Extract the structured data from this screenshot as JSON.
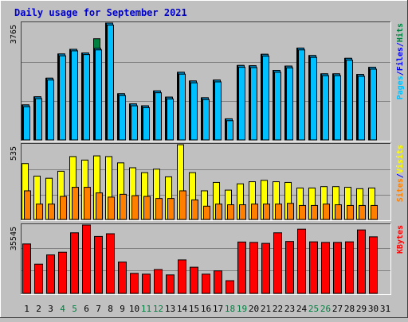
{
  "chart_data": {
    "type": "bar",
    "title": "Daily usage for September 2021",
    "colors": {
      "background": "#c0c0c0",
      "title": "#0000cc",
      "hits": "#008040",
      "files": "#00c0ff",
      "pages": "#00c0ff",
      "visits": "#ffff00",
      "sites": "#ff8000",
      "kbytes": "#ff0000",
      "weekday_label": "#000000",
      "weekend_label": "#008040"
    },
    "categories": [
      "1",
      "2",
      "3",
      "4",
      "5",
      "6",
      "7",
      "8",
      "9",
      "10",
      "11",
      "12",
      "13",
      "14",
      "15",
      "16",
      "17",
      "18",
      "19",
      "20",
      "21",
      "22",
      "23",
      "24",
      "25",
      "26",
      "27",
      "28",
      "29",
      "30",
      "31"
    ],
    "weekend_days": [
      "4",
      "5",
      "11",
      "12",
      "18",
      "19",
      "25",
      "26"
    ],
    "panels": [
      {
        "name": "hits-files-pages",
        "max_label": "3765",
        "ylim": [
          0,
          3765
        ],
        "legend": [
          "Pages",
          "/",
          "Files",
          "/",
          "Hits"
        ],
        "series": [
          {
            "name": "Hits",
            "values": [
              1130,
              1390,
              1990,
              2770,
              2920,
              2800,
              3260,
              3765,
              1490,
              1160,
              1100,
              1580,
              1380,
              2180,
              1900,
              1360,
              1930,
              680,
              2400,
              2390,
              2760,
              2240,
              2380,
              2960,
              2720,
              2130,
              2130,
              2630,
              2110,
              2340,
              0
            ]
          },
          {
            "name": "Files",
            "values": [
              1130,
              1390,
              1990,
              2770,
              2920,
              2800,
              2950,
              3765,
              1490,
              1160,
              1100,
              1580,
              1380,
              2180,
              1900,
              1360,
              1930,
              680,
              2400,
              2390,
              2760,
              2240,
              2380,
              2960,
              2720,
              2130,
              2130,
              2630,
              2110,
              2340,
              0
            ]
          },
          {
            "name": "Pages",
            "values": [
              1070,
              1330,
              1930,
              2710,
              2870,
              2750,
              2900,
              3700,
              1430,
              1100,
              1040,
              1520,
              1320,
              2120,
              1840,
              1300,
              1870,
              620,
              2340,
              2330,
              2700,
              2180,
              2320,
              2900,
              2660,
              2070,
              2070,
              2570,
              2050,
              2280,
              0
            ]
          }
        ]
      },
      {
        "name": "visits-sites",
        "max_label": "535",
        "ylim": [
          0,
          535
        ],
        "legend": [
          "Sites",
          "/",
          "Visits"
        ],
        "series": [
          {
            "name": "Visits",
            "values": [
              400,
              310,
              295,
              345,
              450,
              425,
              455,
              450,
              405,
              370,
              335,
              360,
              305,
              535,
              335,
              205,
              265,
              210,
              255,
              270,
              280,
              270,
              265,
              225,
              225,
              235,
              235,
              230,
              220,
              225,
              0
            ]
          },
          {
            "name": "Sites",
            "values": [
              205,
              110,
              110,
              165,
              230,
              230,
              190,
              160,
              180,
              170,
              165,
              150,
              150,
              205,
              140,
              95,
              110,
              105,
              105,
              110,
              110,
              110,
              115,
              100,
              100,
              110,
              105,
              100,
              100,
              100,
              0
            ]
          }
        ]
      },
      {
        "name": "kbytes",
        "max_label": "35545",
        "ylim": [
          0,
          35545
        ],
        "legend": [
          "KBytes"
        ],
        "series": [
          {
            "name": "KBytes",
            "values": [
              25700,
              15200,
              20000,
              21400,
              31500,
              35545,
              29600,
              31000,
              16300,
              10400,
              10000,
              12400,
              9600,
              17400,
              13600,
              10000,
              11700,
              6600,
              26700,
              26500,
              26000,
              31500,
              27000,
              33400,
              26800,
              26500,
              26500,
              26800,
              33000,
              29400,
              0
            ]
          }
        ]
      }
    ]
  }
}
